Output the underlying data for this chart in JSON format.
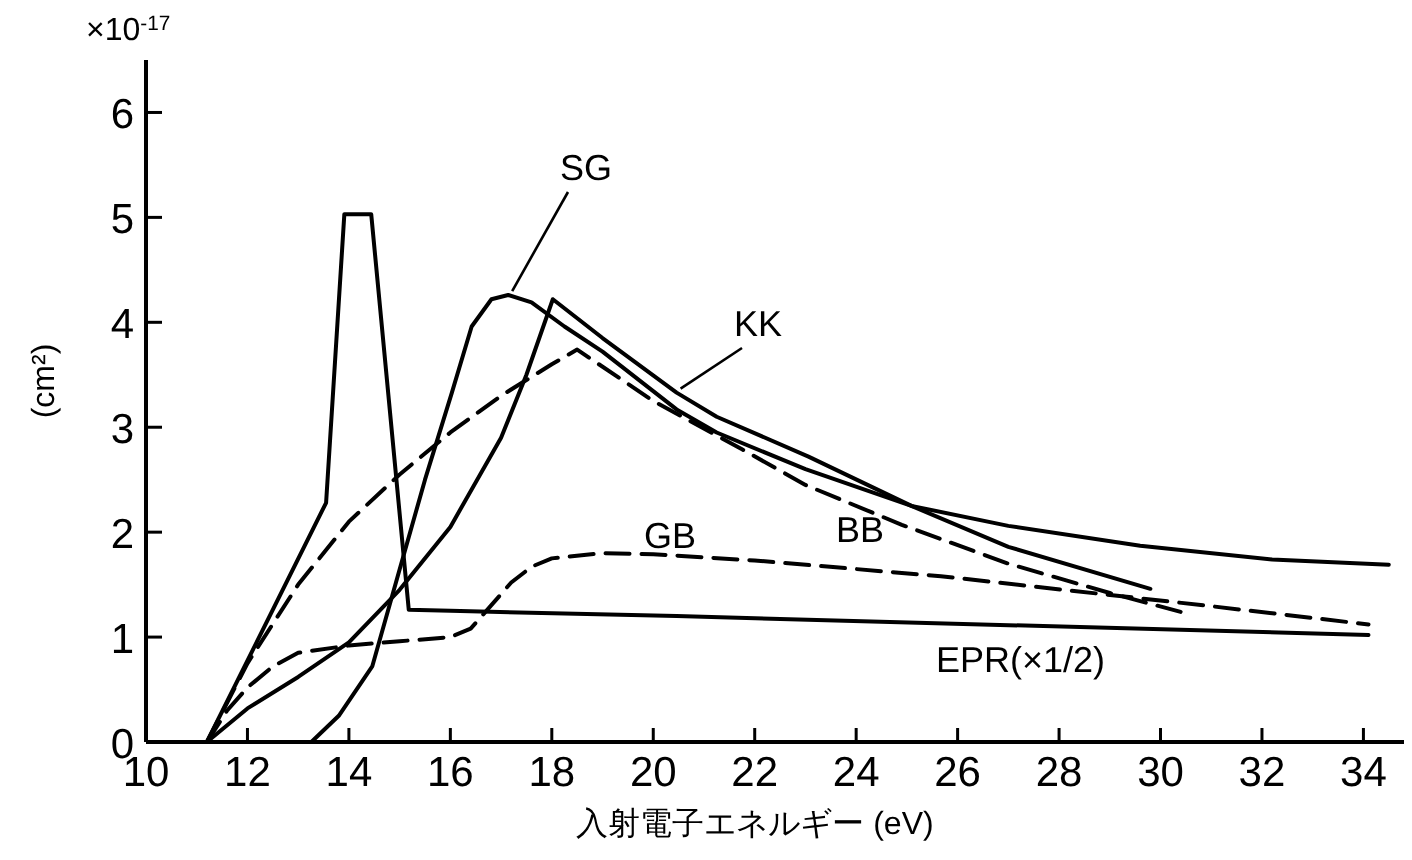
{
  "chart_data": {
    "type": "line",
    "xlabel": "入射電子エネルギー (eV)",
    "ylabel": "(cm²)",
    "annotations": [
      "×10$^{-17}$"
    ],
    "xlim": [
      10,
      34.8
    ],
    "ylim": [
      0,
      6.5
    ],
    "xticks": [
      10,
      12,
      14,
      16,
      18,
      20,
      22,
      24,
      26,
      28,
      30,
      32,
      34
    ],
    "yticks": [
      0,
      1,
      2,
      3,
      4,
      5,
      6
    ],
    "series": [
      {
        "name": "EPR(×1/2)",
        "color": "#000000",
        "line_style": "solid",
        "x": [
          11.2,
          13.55,
          13.91,
          14.44,
          15.18,
          16,
          20.46,
          34.1
        ],
        "values": [
          0,
          2.28,
          5.03,
          5.03,
          1.26,
          1.25,
          1.2,
          1.02
        ]
      },
      {
        "name": "SG",
        "color": "#000000",
        "line_style": "solid",
        "x": [
          13.26,
          13.8,
          14.46,
          14.98,
          15.5,
          16.03,
          16.42,
          16.81,
          17.14,
          17.6,
          18.25,
          19,
          20.46,
          21.25,
          23,
          25.09,
          27,
          29.6,
          32.2,
          34.5
        ],
        "values": [
          0,
          0.25,
          0.72,
          1.61,
          2.5,
          3.33,
          3.96,
          4.22,
          4.26,
          4.19,
          3.96,
          3.72,
          3.17,
          2.95,
          2.6,
          2.25,
          2.06,
          1.87,
          1.74,
          1.69
        ]
      },
      {
        "name": "KK",
        "color": "#000000",
        "line_style": "solid",
        "x": [
          11.2,
          12,
          13,
          14,
          15,
          16,
          17,
          17.5,
          18.02,
          19,
          20.46,
          21.25,
          23.06,
          25.09,
          27,
          29.8
        ],
        "values": [
          0,
          0.32,
          0.62,
          0.95,
          1.45,
          2.05,
          2.9,
          3.5,
          4.22,
          3.85,
          3.33,
          3.1,
          2.72,
          2.25,
          1.86,
          1.46
        ]
      },
      {
        "name": "BB",
        "color": "#000000",
        "line_style": "dashed",
        "x": [
          11.2,
          12,
          13,
          14,
          15,
          16,
          17,
          18,
          18.5,
          20,
          21.75,
          23,
          24.9,
          27,
          29,
          30.4
        ],
        "values": [
          0,
          0.75,
          1.5,
          2.1,
          2.55,
          2.95,
          3.3,
          3.6,
          3.74,
          3.25,
          2.79,
          2.45,
          2.07,
          1.7,
          1.42,
          1.24
        ]
      },
      {
        "name": "GB",
        "color": "#000000",
        "line_style": "dashed",
        "x": [
          11.2,
          11.6,
          12,
          12.5,
          13,
          14,
          15,
          16,
          16.4,
          16.8,
          17.2,
          17.6,
          18,
          19,
          20,
          22,
          25.67,
          30.9,
          34.1
        ],
        "values": [
          0,
          0.3,
          0.52,
          0.72,
          0.85,
          0.92,
          0.96,
          1.0,
          1.08,
          1.3,
          1.52,
          1.67,
          1.75,
          1.8,
          1.79,
          1.73,
          1.58,
          1.3,
          1.12
        ]
      }
    ]
  }
}
